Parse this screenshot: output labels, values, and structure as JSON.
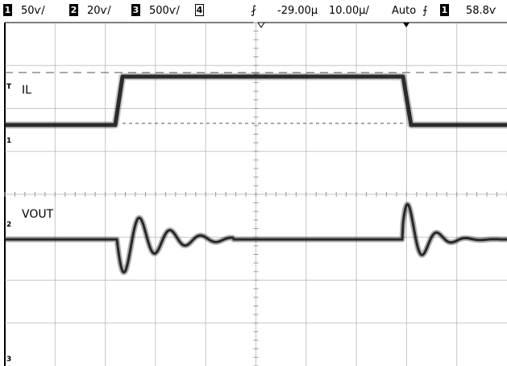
{
  "header": {
    "ch1_num": "1",
    "ch1_scale": "50ѵ/",
    "ch2_num": "2",
    "ch2_scale": "20ѵ/",
    "ch3_num": "3",
    "ch3_scale": "500ѵ/",
    "ch4_num": "4",
    "trigger_pos": "-29.00μ",
    "timebase": "10.00μ/",
    "mode": "Auto",
    "trig_src_num": "1",
    "trig_level": "58.8ѵ"
  },
  "traces": {
    "il_label": "IL",
    "vout_label": "VOUT",
    "ch1_marker": "1",
    "ch2_marker": "2",
    "ch3_marker": "3",
    "trig_marker": "T"
  },
  "colors": {
    "trace": "#1a1a1a",
    "grid": "#999999",
    "background": "#ffffff"
  }
}
